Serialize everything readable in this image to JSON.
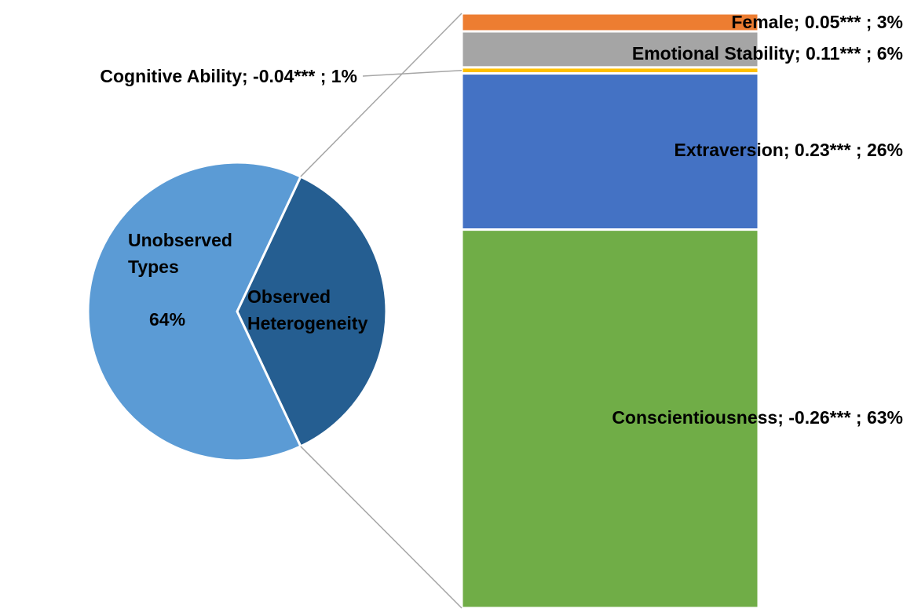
{
  "chart_data": {
    "type": "bar-of-pie",
    "pie": {
      "slices": [
        {
          "name": "Unobserved Types",
          "value": 64,
          "label": "64%",
          "color": "#5b9bd5"
        },
        {
          "name": "Observed Heterogeneity",
          "value": 36,
          "color": "#255e91"
        }
      ]
    },
    "bar": {
      "segments": [
        {
          "label": "Female;  0.05*** ; 3%",
          "value": 3,
          "color": "#ed7d31"
        },
        {
          "label": "Emotional Stability;  0.11*** ; 6%",
          "value": 6,
          "color": "#a5a5a5"
        },
        {
          "label": "Cognitive Ability;  -0.04*** ; 1%",
          "value": 1,
          "color": "#ffc000",
          "outside": true
        },
        {
          "label": "Extraversion;  0.23*** ; 26%",
          "value": 26,
          "color": "#4472c4"
        },
        {
          "label": "Conscientiousness;  -0.26*** ; 63%",
          "value": 63,
          "color": "#70ad47"
        }
      ]
    }
  }
}
